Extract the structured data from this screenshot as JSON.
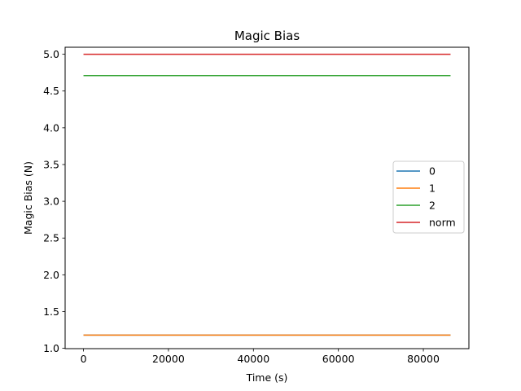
{
  "chart_data": {
    "type": "line",
    "title": "Magic Bias",
    "xlabel": "Time (s)",
    "ylabel": "Magic Bias (N)",
    "xlim": [
      -4320,
      90720
    ],
    "ylim": [
      0.9955,
      5.0955
    ],
    "xticks": [
      0,
      20000,
      40000,
      60000,
      80000
    ],
    "xtick_labels": [
      "0",
      "20000",
      "40000",
      "60000",
      "80000"
    ],
    "yticks": [
      1.0,
      1.5,
      2.0,
      2.5,
      3.0,
      3.5,
      4.0,
      4.5,
      5.0
    ],
    "ytick_labels": [
      "1.0",
      "1.5",
      "2.0",
      "2.5",
      "3.0",
      "3.5",
      "4.0",
      "4.5",
      "5.0"
    ],
    "grid": false,
    "legend_position": "center-right",
    "series": [
      {
        "name": "0",
        "color": "#1f77b4",
        "x": [
          0,
          86400
        ],
        "y": [
          1.18,
          1.18
        ]
      },
      {
        "name": "1",
        "color": "#ff7f0e",
        "x": [
          0,
          86400
        ],
        "y": [
          1.18,
          1.18
        ]
      },
      {
        "name": "2",
        "color": "#2ca02c",
        "x": [
          0,
          86400
        ],
        "y": [
          4.71,
          4.71
        ]
      },
      {
        "name": "norm",
        "color": "#d62728",
        "x": [
          0,
          86400
        ],
        "y": [
          5.0,
          5.0
        ]
      }
    ]
  }
}
